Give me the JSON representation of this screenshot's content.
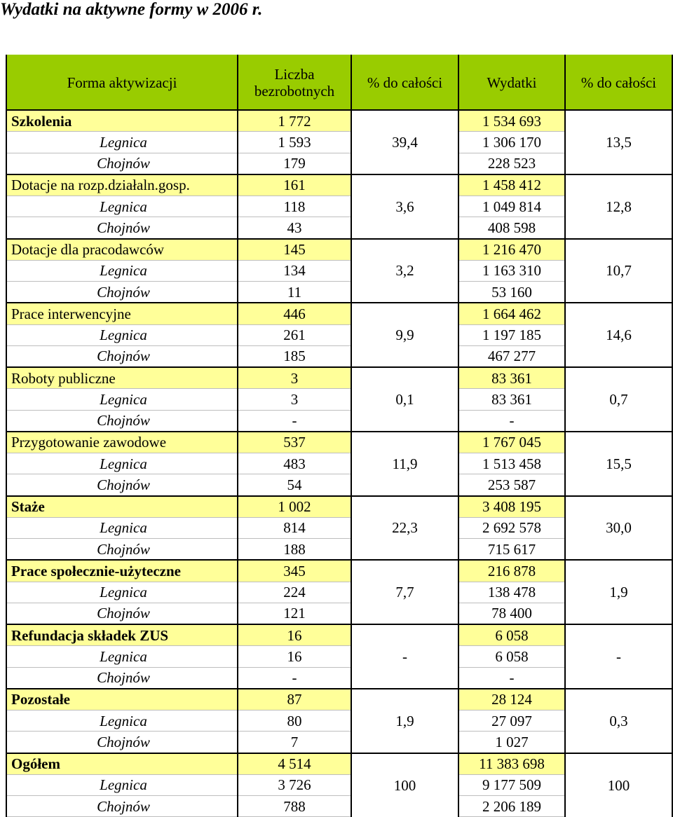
{
  "title": "Wydatki na aktywne formy w 2006 r.",
  "colors": {
    "header_bg": "#99cc00",
    "category_bg": "#ffff99",
    "border": "#000000"
  },
  "table": {
    "headers": [
      "Forma aktywizacji",
      "Liczba bezrobotnych",
      "% do całości",
      "Wydatki",
      "% do całości"
    ],
    "groups": [
      {
        "name": "Szkolenia",
        "bold": true,
        "count": "1 772",
        "count_pct": "39,4",
        "spend": "1 534 693",
        "spend_pct": "13,5",
        "subs": [
          {
            "name": "Legnica",
            "count": "1 593",
            "spend": "1 306 170"
          },
          {
            "name": "Chojnów",
            "count": "179",
            "spend": "228 523"
          }
        ]
      },
      {
        "name": "Dotacje na rozp.działaln.gosp.",
        "bold": false,
        "count": "161",
        "count_pct": "3,6",
        "spend": "1 458 412",
        "spend_pct": "12,8",
        "subs": [
          {
            "name": "Legnica",
            "count": "118",
            "spend": "1 049 814"
          },
          {
            "name": "Chojnów",
            "count": "43",
            "spend": "408 598"
          }
        ]
      },
      {
        "name": "Dotacje dla pracodawców",
        "bold": false,
        "count": "145",
        "count_pct": "3,2",
        "spend": "1 216 470",
        "spend_pct": "10,7",
        "subs": [
          {
            "name": "Legnica",
            "count": "134",
            "spend": "1 163 310"
          },
          {
            "name": "Chojnów",
            "count": "11",
            "spend": "53 160"
          }
        ]
      },
      {
        "name": "Prace interwencyjne",
        "bold": false,
        "count": "446",
        "count_pct": "9,9",
        "spend": "1 664 462",
        "spend_pct": "14,6",
        "subs": [
          {
            "name": "Legnica",
            "count": "261",
            "spend": "1 197 185"
          },
          {
            "name": "Chojnów",
            "count": "185",
            "spend": "467 277"
          }
        ]
      },
      {
        "name": "Roboty publiczne",
        "bold": false,
        "count": "3",
        "count_pct": "0,1",
        "spend": "83 361",
        "spend_pct": "0,7",
        "subs": [
          {
            "name": "Legnica",
            "count": "3",
            "spend": "83 361"
          },
          {
            "name": "Chojnów",
            "count": "-",
            "spend": "-"
          }
        ]
      },
      {
        "name": "Przygotowanie zawodowe",
        "bold": false,
        "count": "537",
        "count_pct": "11,9",
        "spend": "1 767 045",
        "spend_pct": "15,5",
        "subs": [
          {
            "name": "Legnica",
            "count": "483",
            "spend": "1 513 458"
          },
          {
            "name": "Chojnów",
            "count": "54",
            "spend": "253 587"
          }
        ]
      },
      {
        "name": "Staże",
        "bold": true,
        "count": "1 002",
        "count_pct": "22,3",
        "spend": "3 408 195",
        "spend_pct": "30,0",
        "subs": [
          {
            "name": "Legnica",
            "count": "814",
            "spend": "2 692 578"
          },
          {
            "name": "Chojnów",
            "count": "188",
            "spend": "715 617"
          }
        ]
      },
      {
        "name": "Prace społecznie-użyteczne",
        "bold": true,
        "count": "345",
        "count_pct": "7,7",
        "spend": "216 878",
        "spend_pct": "1,9",
        "subs": [
          {
            "name": "Legnica",
            "count": "224",
            "spend": "138 478"
          },
          {
            "name": "Chojnów",
            "count": "121",
            "spend": "78 400"
          }
        ]
      },
      {
        "name": "Refundacja składek ZUS",
        "bold": true,
        "count": "16",
        "count_pct": "-",
        "spend": "6 058",
        "spend_pct": "-",
        "subs": [
          {
            "name": "Legnica",
            "count": "16",
            "spend": "6 058"
          },
          {
            "name": "Chojnów",
            "count": "-",
            "spend": "-"
          }
        ]
      },
      {
        "name": "Pozostałe",
        "bold": true,
        "count": "87",
        "count_pct": "1,9",
        "spend": "28 124",
        "spend_pct": "0,3",
        "subs": [
          {
            "name": "Legnica",
            "count": "80",
            "spend": "27 097"
          },
          {
            "name": "Chojnów",
            "count": "7",
            "spend": "1 027"
          }
        ]
      },
      {
        "name": "Ogółem",
        "bold": true,
        "count": "4 514",
        "count_pct": "100",
        "spend": "11 383 698",
        "spend_pct": "100",
        "subs": [
          {
            "name": "Legnica",
            "count": "3 726",
            "spend": "9 177 509"
          },
          {
            "name": "Chojnów",
            "count": "788",
            "spend": "2 206 189"
          }
        ]
      }
    ]
  }
}
